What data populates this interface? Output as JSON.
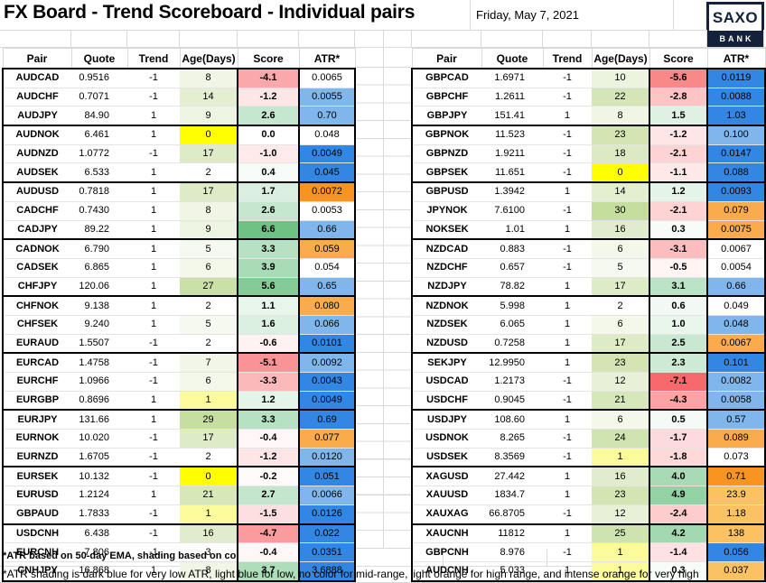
{
  "header": {
    "title": "FX Board - Trend Scoreboard - Individual pairs",
    "date": "Friday, May 7, 2021",
    "logo": {
      "top": "SAXO",
      "bottom": "BANK"
    }
  },
  "columns": [
    "Pair",
    "Quote",
    "Trend",
    "Age(Days)",
    "Score",
    "ATR*"
  ],
  "footnotes": [
    "*ATR based on 50-day EMA, shading based on co",
    "*ATR shading is dark blue for very low ATR, light blue for low, no color for mid-range, light orange for high range, and intense orange for very high"
  ],
  "colors": {
    "logo_navy": "#14213A",
    "grid_line": "#D9D9D9",
    "group_border": "#000000",
    "age_yellow": "#FFFF00",
    "age_light_yellow": "#FBFB9B",
    "atr_dark_blue": "#3287E4",
    "atr_light_blue": "#7FB7ED",
    "atr_light_orange": "#FBC264",
    "atr_medium_orange": "#FAAB4B",
    "atr_intense_orange": "#F8941F",
    "score_max_red": "#F8696B",
    "score_max_green": "#63BE7B"
  },
  "left_table": {
    "rows": [
      {
        "pair": "AUDCAD",
        "quote": "0.9516",
        "trend": "-1",
        "age": "8",
        "score": "-4.1",
        "atr": "0.0065",
        "age_bg": "#F0F5E5",
        "score_bg": "#FBA8AA",
        "atr_bg": "#FFFFFF"
      },
      {
        "pair": "AUDCHF",
        "quote": "0.7071",
        "trend": "-1",
        "age": "14",
        "score": "-1.2",
        "atr": "0.0055",
        "age_bg": "#E4EED1",
        "score_bg": "#FEE6E6",
        "atr_bg": "#7FB7ED"
      },
      {
        "pair": "AUDJPY",
        "quote": "84.90",
        "trend": "1",
        "age": "9",
        "score": "2.6",
        "atr": "0.70",
        "age_bg": "#EEF4E2",
        "score_bg": "#C6E7CF",
        "atr_bg": "#7FB7ED"
      },
      {
        "pair": "AUDNOK",
        "quote": "6.461",
        "trend": "1",
        "age": "0",
        "score": "0.0",
        "atr": "0.048",
        "age_bg": "#FFFF00",
        "score_bg": "#FFFFFF",
        "atr_bg": "#FFFFFF"
      },
      {
        "pair": "AUDNZD",
        "quote": "1.0772",
        "trend": "-1",
        "age": "17",
        "score": "-1.0",
        "atr": "0.0049",
        "age_bg": "#DEEBC7",
        "score_bg": "#FEEAEA",
        "atr_bg": "#3287E4"
      },
      {
        "pair": "AUDSEK",
        "quote": "6.533",
        "trend": "1",
        "age": "2",
        "score": "0.4",
        "atr": "0.045",
        "age_bg": "#FFFFFF",
        "score_bg": "#F6FBF8",
        "atr_bg": "#3287E4"
      },
      {
        "pair": "AUDUSD",
        "quote": "0.7818",
        "trend": "1",
        "age": "17",
        "score": "1.7",
        "atr": "0.0072",
        "age_bg": "#DEEBC7",
        "score_bg": "#DAEFDF",
        "atr_bg": "#F8941F"
      },
      {
        "pair": "CADCHF",
        "quote": "0.7430",
        "trend": "1",
        "age": "8",
        "score": "2.6",
        "atr": "0.0053",
        "age_bg": "#F0F5E5",
        "score_bg": "#C6E7CF",
        "atr_bg": "#FFFFFF"
      },
      {
        "pair": "CADJPY",
        "quote": "89.22",
        "trend": "1",
        "age": "9",
        "score": "6.6",
        "atr": "0.66",
        "age_bg": "#EEF4E2",
        "score_bg": "#6EC384",
        "atr_bg": "#7FB7ED"
      },
      {
        "pair": "CADNOK",
        "quote": "6.790",
        "trend": "1",
        "age": "5",
        "score": "3.3",
        "atr": "0.059",
        "age_bg": "#F5F9EF",
        "score_bg": "#B6E1C2",
        "atr_bg": "#FAAB4B"
      },
      {
        "pair": "CADSEK",
        "quote": "6.865",
        "trend": "1",
        "age": "6",
        "score": "3.9",
        "atr": "0.054",
        "age_bg": "#F3F8EB",
        "score_bg": "#A9DBB7",
        "atr_bg": "#FFFFFF"
      },
      {
        "pair": "CHFJPY",
        "quote": "120.06",
        "trend": "1",
        "age": "27",
        "score": "5.6",
        "atr": "0.65",
        "age_bg": "#CAE0A6",
        "score_bg": "#84CC97",
        "atr_bg": "#7FB7ED"
      },
      {
        "pair": "CHFNOK",
        "quote": "9.138",
        "trend": "1",
        "age": "2",
        "score": "1.1",
        "atr": "0.080",
        "age_bg": "#FFFFFF",
        "score_bg": "#E7F5EB",
        "atr_bg": "#FAAB4B"
      },
      {
        "pair": "CHFSEK",
        "quote": "9.240",
        "trend": "1",
        "age": "5",
        "score": "1.6",
        "atr": "0.066",
        "age_bg": "#F5F9EF",
        "score_bg": "#DCF0E1",
        "atr_bg": "#7FB7ED"
      },
      {
        "pair": "EURAUD",
        "quote": "1.5507",
        "trend": "-1",
        "age": "2",
        "score": "-0.6",
        "atr": "0.0101",
        "age_bg": "#FFFFFF",
        "score_bg": "#FEF2F2",
        "atr_bg": "#3287E4"
      },
      {
        "pair": "EURCAD",
        "quote": "1.4758",
        "trend": "-1",
        "age": "7",
        "score": "-5.1",
        "atr": "0.0092",
        "age_bg": "#F1F6E8",
        "score_bg": "#FA9395",
        "atr_bg": "#7FB7ED"
      },
      {
        "pair": "EURCHF",
        "quote": "1.0966",
        "trend": "-1",
        "age": "6",
        "score": "-3.3",
        "atr": "0.0043",
        "age_bg": "#F3F8EB",
        "score_bg": "#FCB9BA",
        "atr_bg": "#3287E4"
      },
      {
        "pair": "EURGBP",
        "quote": "0.8696",
        "trend": "1",
        "age": "1",
        "score": "1.2",
        "atr": "0.0049",
        "age_bg": "#FBFB9B",
        "score_bg": "#E5F4E9",
        "atr_bg": "#3287E4"
      },
      {
        "pair": "EURJPY",
        "quote": "131.66",
        "trend": "1",
        "age": "29",
        "score": "3.3",
        "atr": "0.69",
        "age_bg": "#C6DEA0",
        "score_bg": "#B6E1C2",
        "atr_bg": "#3287E4"
      },
      {
        "pair": "EURNOK",
        "quote": "10.020",
        "trend": "-1",
        "age": "17",
        "score": "-0.4",
        "atr": "0.077",
        "age_bg": "#DEEBC7",
        "score_bg": "#FFF7F7",
        "atr_bg": "#FAAB4B"
      },
      {
        "pair": "EURNZD",
        "quote": "1.6705",
        "trend": "-1",
        "age": "2",
        "score": "-1.2",
        "atr": "0.0120",
        "age_bg": "#FFFFFF",
        "score_bg": "#FEE6E6",
        "atr_bg": "#7FB7ED"
      },
      {
        "pair": "EURSEK",
        "quote": "10.132",
        "trend": "-1",
        "age": "0",
        "score": "-0.2",
        "atr": "0.051",
        "age_bg": "#FFFF00",
        "score_bg": "#FFFBFB",
        "atr_bg": "#3287E4"
      },
      {
        "pair": "EURUSD",
        "quote": "1.2124",
        "trend": "1",
        "age": "21",
        "score": "2.7",
        "atr": "0.0066",
        "age_bg": "#D6E7BA",
        "score_bg": "#C4E6CD",
        "atr_bg": "#7FB7ED"
      },
      {
        "pair": "GBPAUD",
        "quote": "1.7833",
        "trend": "-1",
        "age": "1",
        "score": "-1.5",
        "atr": "0.0126",
        "age_bg": "#FBFB9B",
        "score_bg": "#FEDFE0",
        "atr_bg": "#3287E4"
      },
      {
        "pair": "USDCNH",
        "quote": "6.438",
        "trend": "-1",
        "age": "16",
        "score": "-4.7",
        "atr": "0.022",
        "age_bg": "#E0ECCB",
        "score_bg": "#FA9C9D",
        "atr_bg": "#3287E4"
      },
      {
        "pair": "EURCNH",
        "quote": "7.806",
        "trend": "-1",
        "age": "3",
        "score": "-0.4",
        "atr": "0.0351",
        "age_bg": "#FDFEFB",
        "score_bg": "#FFF7F7",
        "atr_bg": "#3287E4"
      },
      {
        "pair": "CNHJPY",
        "quote": "16.868",
        "trend": "1",
        "age": "8",
        "score": "3.7",
        "atr": "3.6888",
        "age_bg": "#F0F5E5",
        "score_bg": "#AEDDBA",
        "atr_bg": "#3287E4"
      }
    ]
  },
  "right_table": {
    "rows": [
      {
        "pair": "GBPCAD",
        "quote": "1.6971",
        "trend": "-1",
        "age": "10",
        "score": "-5.6",
        "atr": "0.0119",
        "age_bg": "#ECF3DE",
        "score_bg": "#F98989",
        "atr_bg": "#3287E4"
      },
      {
        "pair": "GBPCHF",
        "quote": "1.2611",
        "trend": "-1",
        "age": "22",
        "score": "-2.8",
        "atr": "0.0088",
        "age_bg": "#D4E6B7",
        "score_bg": "#FCC4C5",
        "atr_bg": "#3287E4"
      },
      {
        "pair": "GBPJPY",
        "quote": "151.41",
        "trend": "1",
        "age": "8",
        "score": "1.5",
        "atr": "1.03",
        "age_bg": "#F0F5E5",
        "score_bg": "#DEF1E3",
        "atr_bg": "#3287E4"
      },
      {
        "pair": "GBPNOK",
        "quote": "11.523",
        "trend": "-1",
        "age": "23",
        "score": "-1.2",
        "atr": "0.100",
        "age_bg": "#D2E5B3",
        "score_bg": "#FEE6E6",
        "atr_bg": "#7FB7ED"
      },
      {
        "pair": "GBPNZD",
        "quote": "1.9211",
        "trend": "-1",
        "age": "18",
        "score": "-2.1",
        "atr": "0.0147",
        "age_bg": "#DCEAC4",
        "score_bg": "#FDD3D3",
        "atr_bg": "#3287E4"
      },
      {
        "pair": "GBPSEK",
        "quote": "11.651",
        "trend": "-1",
        "age": "0",
        "score": "-1.1",
        "atr": "0.088",
        "age_bg": "#FFFF00",
        "score_bg": "#FEE8E8",
        "atr_bg": "#3287E4"
      },
      {
        "pair": "GBPUSD",
        "quote": "1.3942",
        "trend": "1",
        "age": "14",
        "score": "1.2",
        "atr": "0.0093",
        "age_bg": "#E4EED1",
        "score_bg": "#E5F4E9",
        "atr_bg": "#3287E4"
      },
      {
        "pair": "JPYNOK",
        "quote": "7.6100",
        "trend": "-1",
        "age": "30",
        "score": "-2.1",
        "atr": "0.079",
        "age_bg": "#C5DD9D",
        "score_bg": "#FDD3D3",
        "atr_bg": "#FAAB4B"
      },
      {
        "pair": "NOKSEK",
        "quote": "1.01",
        "trend": "1",
        "age": "16",
        "score": "0.3",
        "atr": "0.0075",
        "age_bg": "#E0ECCB",
        "score_bg": "#F8FCF9",
        "atr_bg": "#FAAB4B"
      },
      {
        "pair": "NZDCAD",
        "quote": "0.883",
        "trend": "-1",
        "age": "6",
        "score": "-3.1",
        "atr": "0.0067",
        "age_bg": "#F3F8EB",
        "score_bg": "#FCBDBE",
        "atr_bg": "#FFFFFF"
      },
      {
        "pair": "NZDCHF",
        "quote": "0.657",
        "trend": "-1",
        "age": "5",
        "score": "-0.5",
        "atr": "0.0054",
        "age_bg": "#F5F9EF",
        "score_bg": "#FFF5F5",
        "atr_bg": "#FFFFFF"
      },
      {
        "pair": "NZDJPY",
        "quote": "78.82",
        "trend": "1",
        "age": "17",
        "score": "3.1",
        "atr": "0.66",
        "age_bg": "#DEEBC7",
        "score_bg": "#BBE3C5",
        "atr_bg": "#7FB7ED"
      },
      {
        "pair": "NZDNOK",
        "quote": "5.998",
        "trend": "1",
        "age": "2",
        "score": "0.6",
        "atr": "0.049",
        "age_bg": "#FFFFFF",
        "score_bg": "#F2F9F4",
        "atr_bg": "#FFFFFF"
      },
      {
        "pair": "NZDSEK",
        "quote": "6.065",
        "trend": "1",
        "age": "6",
        "score": "1.0",
        "atr": "0.048",
        "age_bg": "#F3F8EB",
        "score_bg": "#E9F6EC",
        "atr_bg": "#7FB7ED"
      },
      {
        "pair": "NZDUSD",
        "quote": "0.7258",
        "trend": "1",
        "age": "17",
        "score": "2.5",
        "atr": "0.0067",
        "age_bg": "#DEEBC7",
        "score_bg": "#C8E8D1",
        "atr_bg": "#FAAB4B"
      },
      {
        "pair": "SEKJPY",
        "quote": "12.9950",
        "trend": "1",
        "age": "23",
        "score": "2.3",
        "atr": "0.101",
        "age_bg": "#D2E5B3",
        "score_bg": "#CCEAD4",
        "atr_bg": "#3287E4"
      },
      {
        "pair": "USDCAD",
        "quote": "1.2173",
        "trend": "-1",
        "age": "12",
        "score": "-7.1",
        "atr": "0.0082",
        "age_bg": "#E8F0D8",
        "score_bg": "#F8696B",
        "atr_bg": "#7FB7ED"
      },
      {
        "pair": "USDCHF",
        "quote": "0.9045",
        "trend": "-1",
        "age": "21",
        "score": "-4.3",
        "atr": "0.0058",
        "age_bg": "#D6E7BA",
        "score_bg": "#FBA4A5",
        "atr_bg": "#7FB7ED"
      },
      {
        "pair": "USDJPY",
        "quote": "108.60",
        "trend": "1",
        "age": "6",
        "score": "0.5",
        "atr": "0.57",
        "age_bg": "#F3F8EB",
        "score_bg": "#F4FAF6",
        "atr_bg": "#7FB7ED"
      },
      {
        "pair": "USDNOK",
        "quote": "8.265",
        "trend": "-1",
        "age": "24",
        "score": "-1.7",
        "atr": "0.089",
        "age_bg": "#D0E4B0",
        "score_bg": "#FDDBDC",
        "atr_bg": "#FAAB4B"
      },
      {
        "pair": "USDSEK",
        "quote": "8.3569",
        "trend": "-1",
        "age": "1",
        "score": "-1.8",
        "atr": "0.073",
        "age_bg": "#FBFB9B",
        "score_bg": "#FDD9D9",
        "atr_bg": "#FFFFFF"
      },
      {
        "pair": "XAGUSD",
        "quote": "27.442",
        "trend": "1",
        "age": "16",
        "score": "4.0",
        "atr": "0.71",
        "age_bg": "#E0ECCB",
        "score_bg": "#A7DAB5",
        "atr_bg": "#F8941F"
      },
      {
        "pair": "XAUUSD",
        "quote": "1834.7",
        "trend": "1",
        "age": "23",
        "score": "4.9",
        "atr": "23.9",
        "age_bg": "#D2E5B3",
        "score_bg": "#93D2A4",
        "atr_bg": "#FBC264"
      },
      {
        "pair": "XAUXAG",
        "quote": "66.8705",
        "trend": "-1",
        "age": "12",
        "score": "-2.4",
        "atr": "1.18",
        "age_bg": "#E8F0D8",
        "score_bg": "#FDCCCD",
        "atr_bg": "#FBC264"
      },
      {
        "pair": "XAUCNH",
        "quote": "11812",
        "trend": "1",
        "age": "25",
        "score": "4.2",
        "atr": "138",
        "age_bg": "#CEE3AD",
        "score_bg": "#A3D9B1",
        "atr_bg": "#FBC264"
      },
      {
        "pair": "GBPCNH",
        "quote": "8.976",
        "trend": "-1",
        "age": "1",
        "score": "-1.4",
        "atr": "0.056",
        "age_bg": "#FBFB9B",
        "score_bg": "#FEE1E2",
        "atr_bg": "#3287E4"
      },
      {
        "pair": "AUDCNH",
        "quote": "5.033",
        "trend": "1",
        "age": "1",
        "score": "0.3",
        "atr": "0.037",
        "age_bg": "#FBFB9B",
        "score_bg": "#F8FCF9",
        "atr_bg": "#FBC264"
      }
    ]
  }
}
